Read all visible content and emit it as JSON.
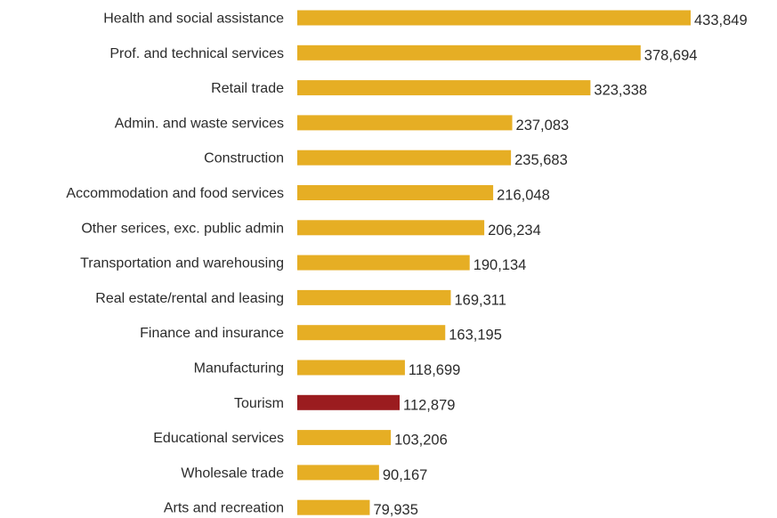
{
  "chart_data": {
    "type": "bar",
    "orientation": "horizontal",
    "title": "",
    "xlabel": "",
    "ylabel": "",
    "grid": false,
    "legend": "none",
    "categories": [
      "Health and social assistance",
      "Prof. and technical services",
      "Retail trade",
      "Admin. and waste services",
      "Construction",
      "Accommodation and food services",
      "Other serices, exc. public admin",
      "Transportation and warehousing",
      "Real estate/rental and leasing",
      "Finance and insurance",
      "Manufacturing",
      "Tourism",
      "Educational services",
      "Wholesale trade",
      "Arts and recreation"
    ],
    "values": [
      433849,
      378694,
      323338,
      237083,
      235683,
      216048,
      206234,
      190134,
      169311,
      163195,
      118699,
      112879,
      103206,
      90167,
      79935
    ],
    "value_labels": [
      "433,849",
      "378,694",
      "323,338",
      "237,083",
      "235,683",
      "216,048",
      "206,234",
      "190,134",
      "169,311",
      "163,195",
      "118,699",
      "112,879",
      "103,206",
      "90,167",
      "79,935"
    ],
    "xlim": [
      0,
      433849
    ],
    "colors": {
      "default_bar": "#E6AE24",
      "highlight_bar": "#9B1C1F"
    },
    "highlight": "Tourism"
  }
}
